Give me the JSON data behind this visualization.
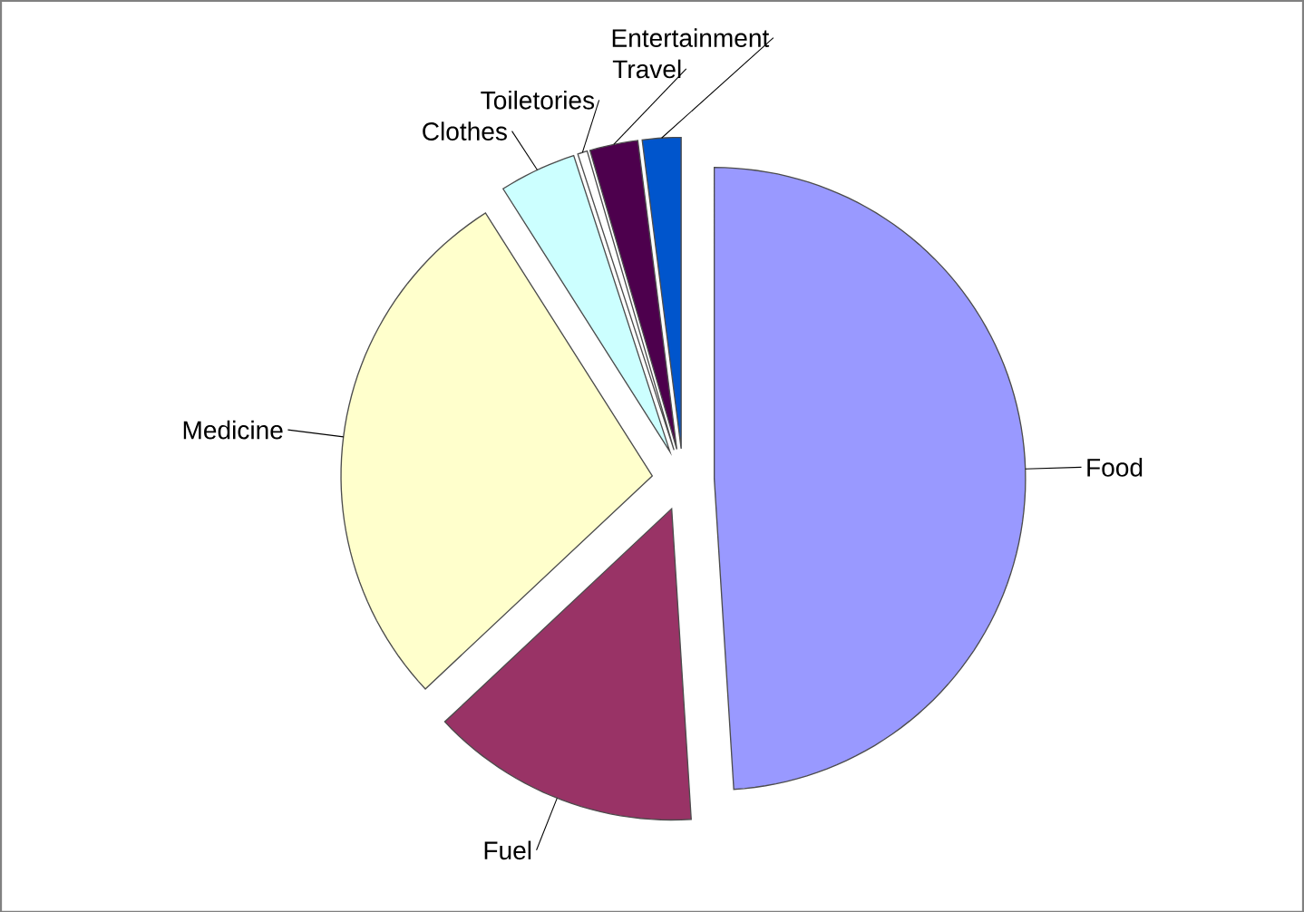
{
  "chart_data": {
    "type": "pie",
    "categories": [
      "Food",
      "Fuel",
      "Medicine",
      "Clothes",
      "Toiletories",
      "Travel",
      "Entertainment"
    ],
    "values": [
      49,
      14,
      28,
      4,
      0.5,
      2.5,
      2
    ],
    "colors": [
      "#9999ff",
      "#993366",
      "#ffffcc",
      "#ccffff",
      "#ffffff",
      "#4d004d",
      "#0055cc"
    ]
  }
}
